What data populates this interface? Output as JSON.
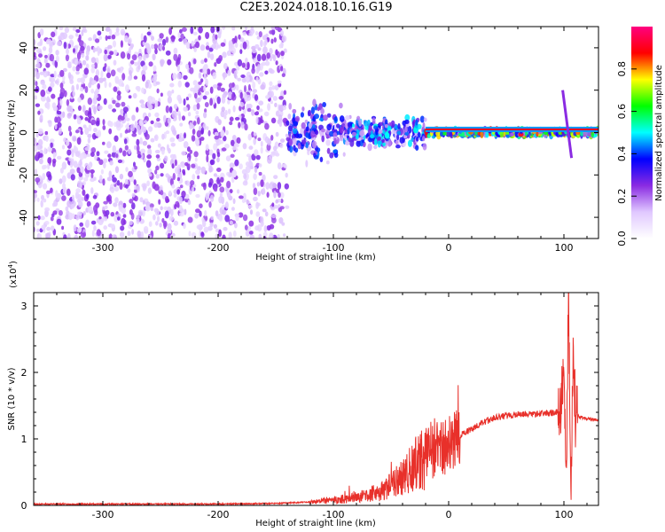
{
  "title": "C2E3.2024.018.10.16.G19",
  "chart_data": [
    {
      "type": "heatmap",
      "xlabel": "Height of straight line (km)",
      "ylabel": "Frequency (Hz)",
      "xlim": [
        -360,
        130
      ],
      "ylim": [
        -50,
        50
      ],
      "x_ticks": [
        -300,
        -200,
        -100,
        0,
        100
      ],
      "x_tick_labels": [
        "-300",
        "-200",
        "-100",
        "0",
        "100"
      ],
      "y_ticks": [
        -40,
        -20,
        0,
        20,
        40
      ],
      "y_tick_labels": [
        "-40",
        "-20",
        "0",
        "20",
        "40"
      ],
      "colorbar": {
        "label": "Normalized spectral amplitude",
        "range": [
          0.0,
          1.0
        ],
        "ticks": [
          0.0,
          0.2,
          0.4,
          0.6,
          0.8
        ],
        "tick_labels": [
          "0.0",
          "0.2",
          "0.4",
          "0.6",
          "0.8"
        ],
        "colormap": [
          "#ffffff",
          "#e0c8ff",
          "#8a2be2",
          "#0000ff",
          "#00ffff",
          "#00ff00",
          "#ffff00",
          "#ff0000",
          "#ff0080"
        ]
      },
      "regions": [
        {
          "x": [
            -360,
            -140
          ],
          "freq_spread": 50,
          "amplitude": 0.15
        },
        {
          "x": [
            -140,
            -90
          ],
          "freq_spread": 15,
          "amplitude": 0.3
        },
        {
          "x": [
            -90,
            -20
          ],
          "freq_spread": 8,
          "amplitude": 0.35
        },
        {
          "x": [
            -20,
            130
          ],
          "freq_spread": 2,
          "amplitude": 0.6
        }
      ]
    },
    {
      "type": "line",
      "xlabel": "Height of straight line (km)",
      "ylabel": "SNR (10 * v/v)",
      "y_multiplier": "(x10",
      "y_multiplier_exp": "4",
      "y_multiplier_close": ")",
      "xlim": [
        -360,
        130
      ],
      "ylim": [
        0,
        3.2
      ],
      "x_ticks": [
        -300,
        -200,
        -100,
        0,
        100
      ],
      "x_tick_labels": [
        "-300",
        "-200",
        "-100",
        "0",
        "100"
      ],
      "y_ticks": [
        0,
        1,
        2,
        3
      ],
      "y_tick_labels": [
        "0",
        "1",
        "2",
        "3"
      ],
      "line_color": "#e8302a",
      "series": [
        {
          "x": [
            -360,
            -300,
            -200,
            -150,
            -120,
            -100,
            -80,
            -60,
            -40,
            -30,
            -20,
            -10,
            -5,
            0,
            10,
            20,
            30,
            40,
            60,
            80,
            95,
            100,
            102,
            104,
            106,
            108,
            110,
            120,
            130
          ],
          "values": [
            0.02,
            0.02,
            0.02,
            0.03,
            0.05,
            0.08,
            0.12,
            0.2,
            0.4,
            0.6,
            0.75,
            0.9,
            0.8,
            0.9,
            1.05,
            1.15,
            1.25,
            1.32,
            1.37,
            1.38,
            1.4,
            1.8,
            0.3,
            3.1,
            0.2,
            2.5,
            1.35,
            1.3,
            1.28
          ]
        }
      ]
    }
  ]
}
